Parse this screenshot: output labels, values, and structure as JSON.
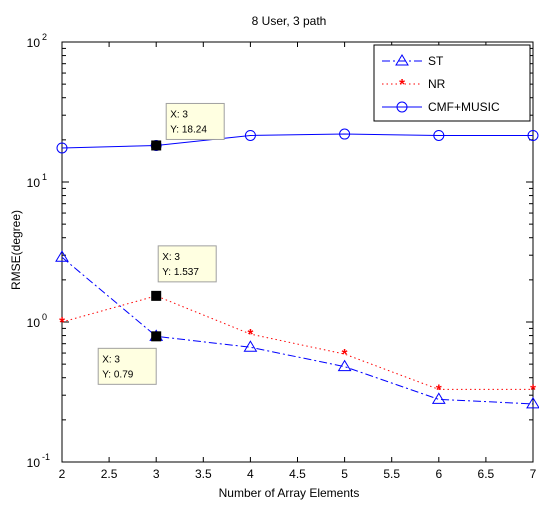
{
  "chart_data": {
    "type": "line",
    "title": "8 User, 3 path",
    "xlabel": "Number of Array Elements",
    "ylabel": "RMSE(degree)",
    "xlim": [
      2,
      7
    ],
    "ylim": [
      0.1,
      100
    ],
    "yscale": "log",
    "grid": false,
    "legend_position": "top-right",
    "x_ticks": [
      "2",
      "2.5",
      "3",
      "3.5",
      "4",
      "4.5",
      "5",
      "5.5",
      "6",
      "6.5",
      "7"
    ],
    "x": [
      2,
      3,
      4,
      5,
      6,
      7
    ],
    "series": [
      {
        "name": "ST",
        "values": [
          2.9,
          0.79,
          0.66,
          0.48,
          0.28,
          0.26
        ],
        "color": "#0000ff",
        "line_style": "dash-dot",
        "marker": "triangle"
      },
      {
        "name": "NR",
        "values": [
          1.0,
          1.537,
          0.82,
          0.59,
          0.33,
          0.33
        ],
        "color": "#ff0000",
        "line_style": "dotted",
        "marker": "star"
      },
      {
        "name": "CMF+MUSIC",
        "values": [
          17.5,
          18.24,
          21.5,
          22.0,
          21.5,
          21.5
        ],
        "color": "#0000ff",
        "line_style": "solid",
        "marker": "circle"
      }
    ],
    "datatips": [
      {
        "x": 3,
        "y": 18.24,
        "x_text": "X: 3",
        "y_text": "Y: 18.24"
      },
      {
        "x": 3,
        "y": 1.537,
        "x_text": "X: 3",
        "y_text": "Y: 1.537"
      },
      {
        "x": 3,
        "y": 0.79,
        "x_text": "X: 3",
        "y_text": "Y: 0.79"
      }
    ]
  }
}
